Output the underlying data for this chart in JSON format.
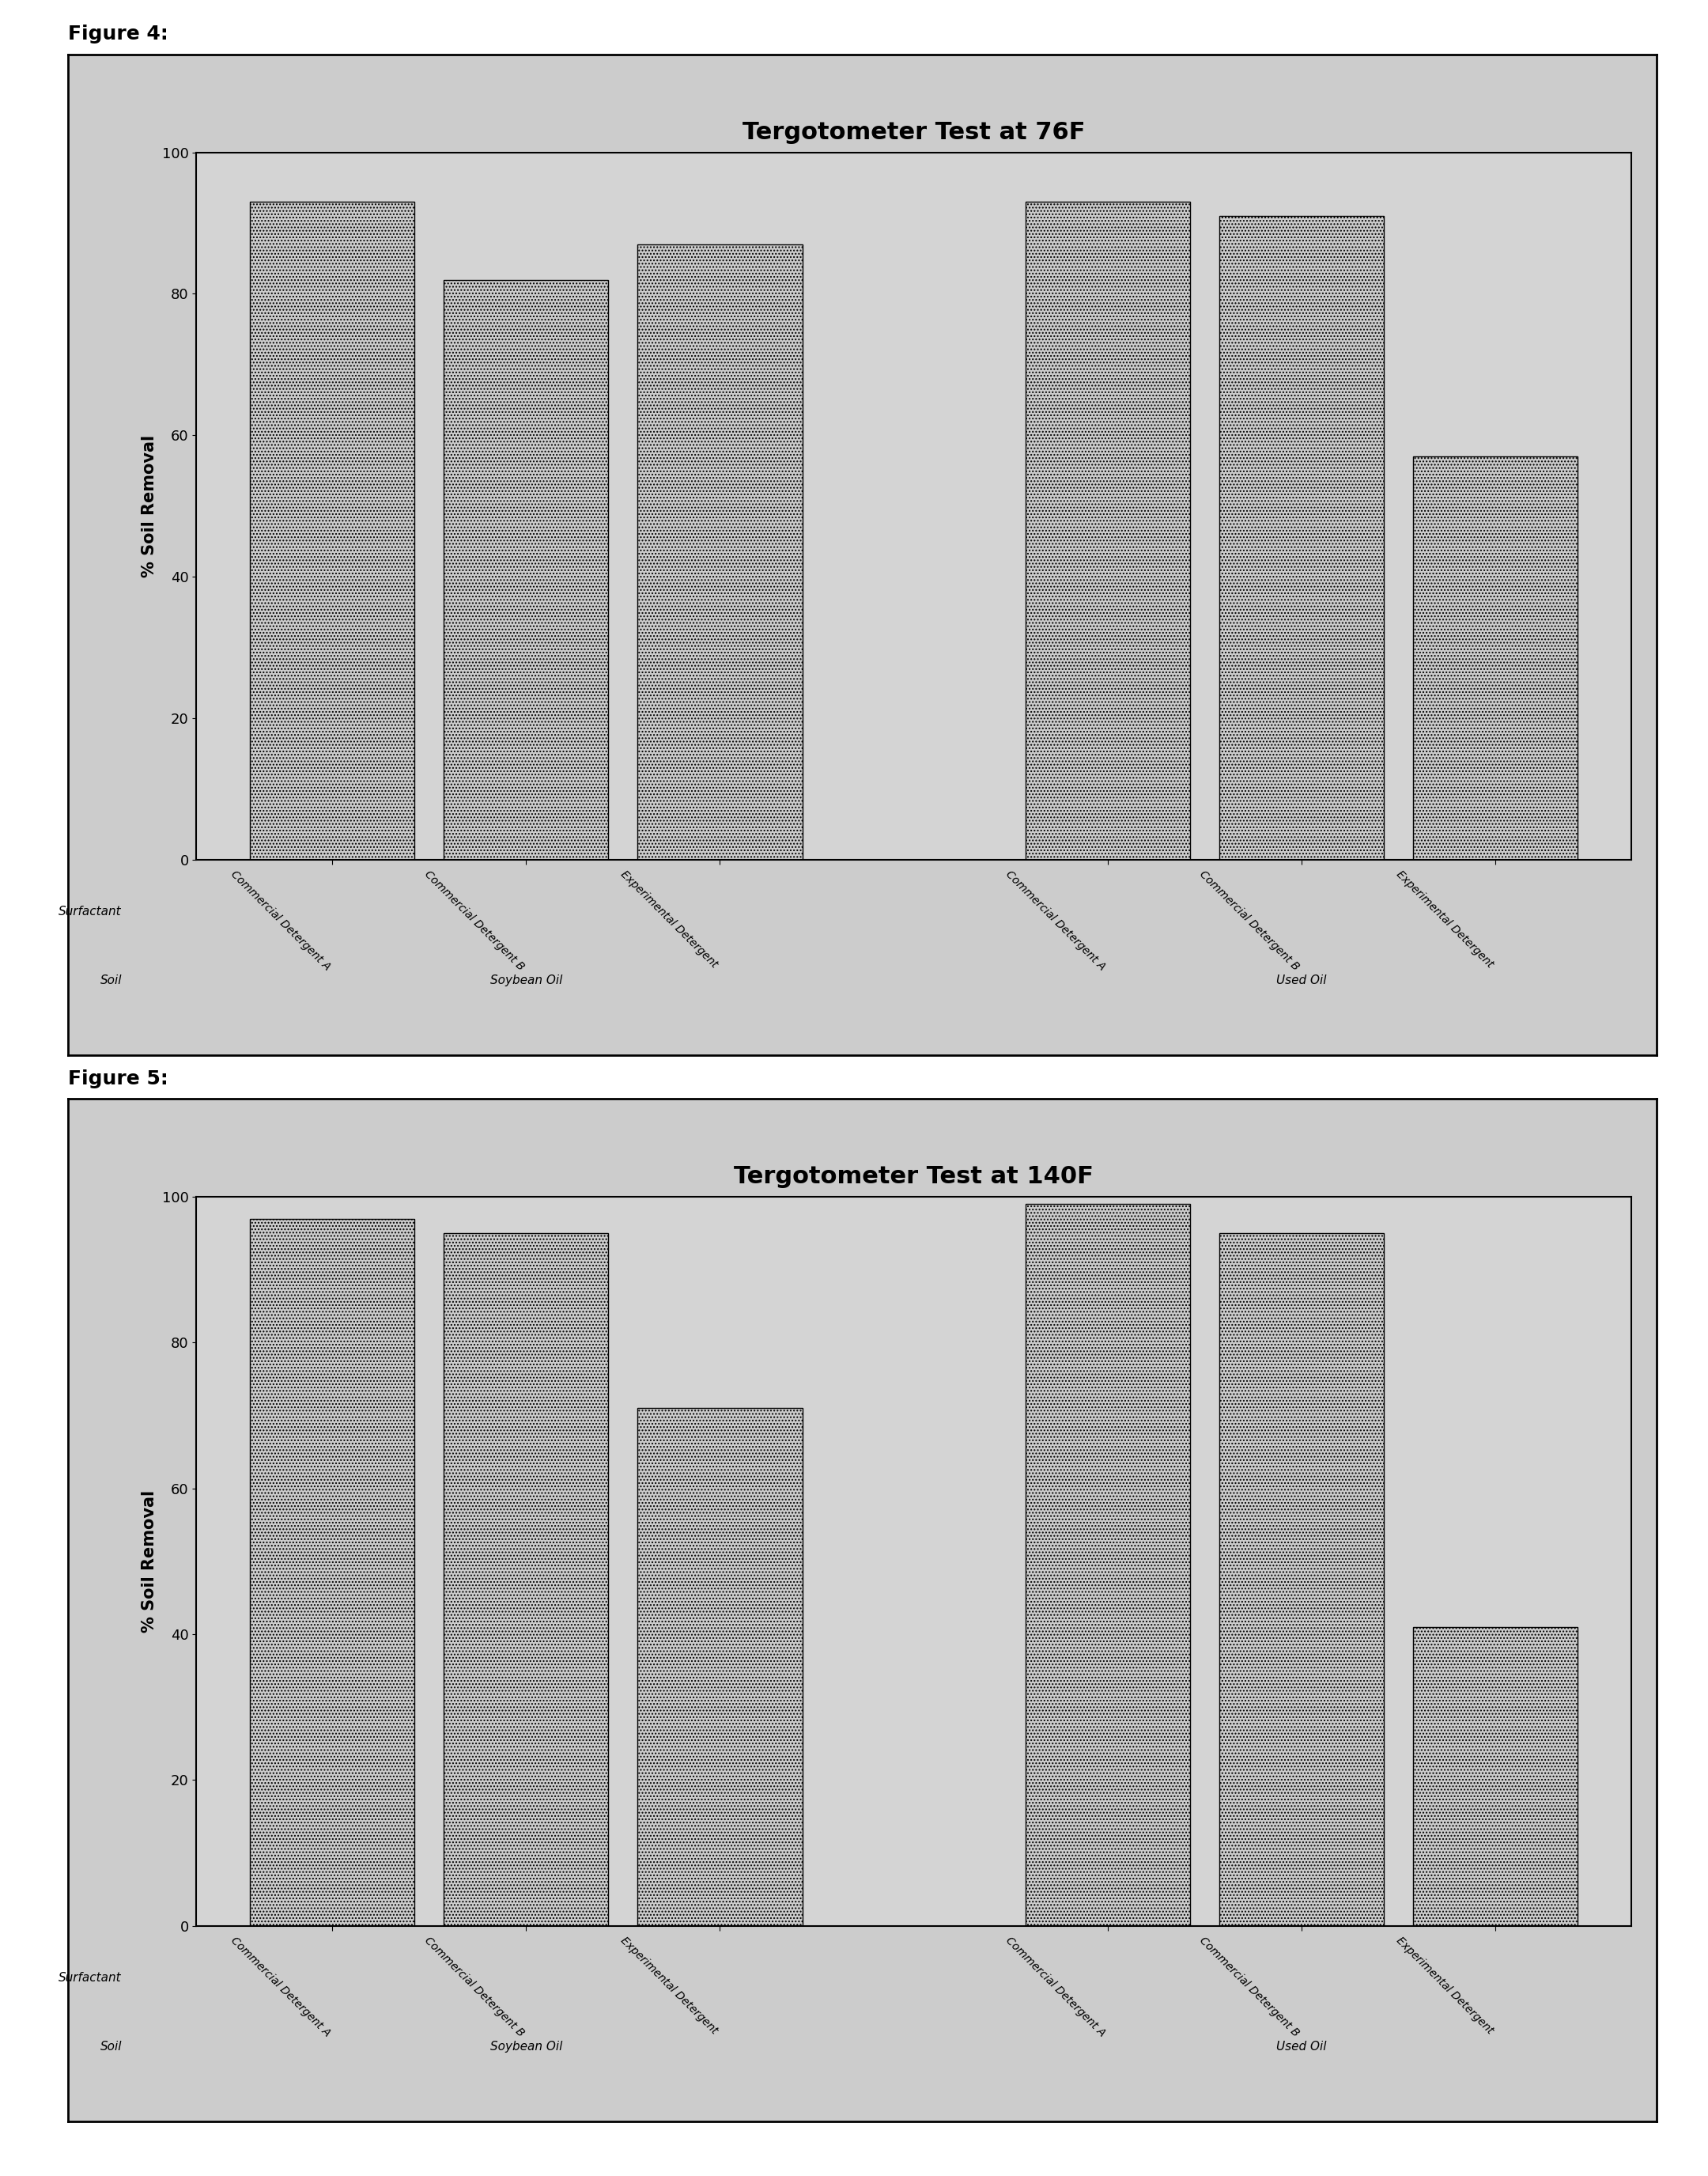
{
  "fig4_title": "Tergotometer Test at 76F",
  "fig5_title": "Tergotometer Test at 140F",
  "fig4_label": "Figure 4:",
  "fig5_label": "Figure 5:",
  "ylabel": "% Soil Removal",
  "surfactant_label": "Surfactant",
  "soil_label": "Soil",
  "ylim": [
    0,
    100
  ],
  "yticks": [
    0,
    20,
    40,
    60,
    80,
    100
  ],
  "fig4_values": [
    93,
    82,
    87,
    93,
    91,
    57
  ],
  "fig5_values": [
    97,
    95,
    71,
    99,
    95,
    41
  ],
  "bar_labels": [
    "Commercial Detergent A",
    "Commercial Detergent B",
    "Experimental Detergent",
    "Commercial Detergent A",
    "Commercial Detergent B",
    "Experimental Detergent"
  ],
  "soil_group1": "Soybean Oil",
  "soil_group2": "Used Oil",
  "bar_color": "#cccccc",
  "bar_hatch": "....",
  "bar_edgecolor": "#000000",
  "panel_bg_color": "#cccccc",
  "inner_bg_color": "#ffffff",
  "chart_area_bg": "#d4d4d4",
  "title_fontsize": 22,
  "label_fontsize": 15,
  "tick_fontsize": 13,
  "bar_label_fontsize": 10,
  "soil_label_fontsize": 11,
  "figure_label_fontsize": 18
}
